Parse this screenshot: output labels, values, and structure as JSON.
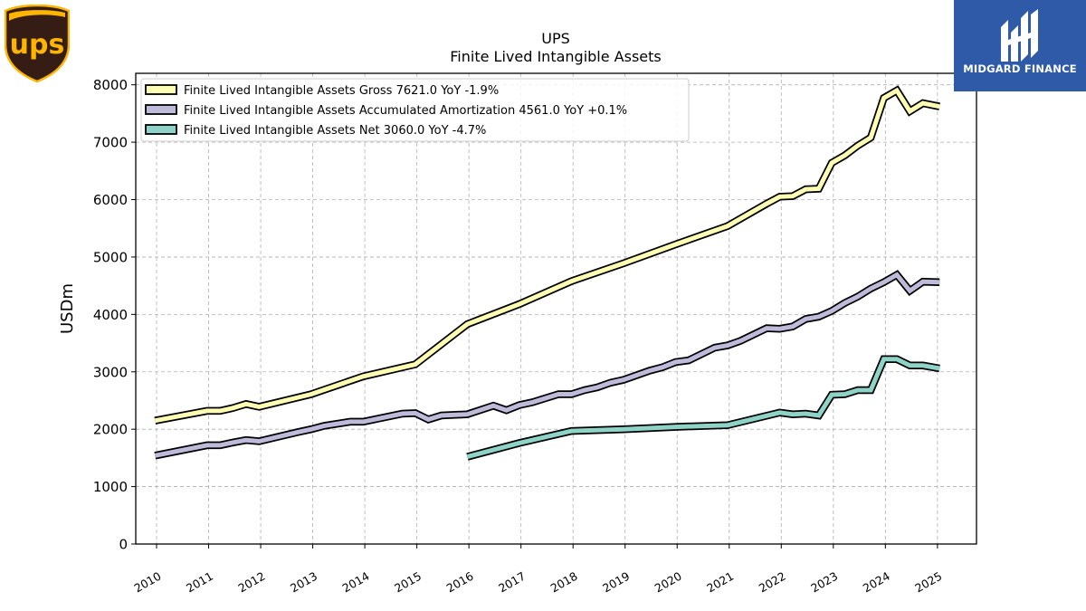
{
  "brand": {
    "ups_logo_text": "ups",
    "ups_colors": {
      "shield": "#351c15",
      "gold": "#ffb500"
    },
    "partner_name": "MIDGARD FINANCE",
    "partner_color": "#2f5aa8"
  },
  "chart_data": {
    "type": "line",
    "title": "UPS",
    "subtitle": "Finite Lived Intangible Assets",
    "ylabel": "USDm",
    "xlabel": "",
    "xlim": [
      2009.6,
      2025.75
    ],
    "ylim": [
      0,
      8200
    ],
    "yticks": [
      0,
      1000,
      2000,
      3000,
      4000,
      5000,
      6000,
      7000,
      8000
    ],
    "xticks": [
      "2010",
      "2011",
      "2012",
      "2013",
      "2014",
      "2015",
      "2016",
      "2017",
      "2018",
      "2019",
      "2020",
      "2021",
      "2022",
      "2023",
      "2024",
      "2025"
    ],
    "grid": true,
    "legend_position": "top-left",
    "series": [
      {
        "name": "Finite Lived Intangible Assets Gross  7621.0 YoY -1.9%",
        "color": "#ffffb3",
        "points": [
          [
            2009.97,
            2150
          ],
          [
            2010.97,
            2320
          ],
          [
            2011.22,
            2320
          ],
          [
            2011.47,
            2370
          ],
          [
            2011.72,
            2440
          ],
          [
            2011.97,
            2390
          ],
          [
            2012.97,
            2610
          ],
          [
            2013.97,
            2920
          ],
          [
            2014.97,
            3130
          ],
          [
            2015.97,
            3830
          ],
          [
            2016.97,
            4180
          ],
          [
            2017.97,
            4580
          ],
          [
            2018.97,
            4890
          ],
          [
            2019.97,
            5220
          ],
          [
            2020.97,
            5540
          ],
          [
            2021.72,
            5930
          ],
          [
            2021.97,
            6050
          ],
          [
            2022.22,
            6060
          ],
          [
            2022.47,
            6180
          ],
          [
            2022.72,
            6190
          ],
          [
            2022.97,
            6640
          ],
          [
            2023.22,
            6770
          ],
          [
            2023.47,
            6940
          ],
          [
            2023.72,
            7080
          ],
          [
            2023.97,
            7770
          ],
          [
            2024.22,
            7900
          ],
          [
            2024.47,
            7540
          ],
          [
            2024.72,
            7680
          ],
          [
            2025.04,
            7621
          ]
        ]
      },
      {
        "name": "Finite Lived Intangible Assets Accumulated Amortization  4561.0 YoY +0.1%",
        "color": "#bebada",
        "points": [
          [
            2009.97,
            1540
          ],
          [
            2010.97,
            1720
          ],
          [
            2011.22,
            1720
          ],
          [
            2011.47,
            1770
          ],
          [
            2011.72,
            1810
          ],
          [
            2011.97,
            1790
          ],
          [
            2012.72,
            1950
          ],
          [
            2012.97,
            2000
          ],
          [
            2013.22,
            2060
          ],
          [
            2013.72,
            2130
          ],
          [
            2013.97,
            2130
          ],
          [
            2014.72,
            2270
          ],
          [
            2014.97,
            2280
          ],
          [
            2015.22,
            2170
          ],
          [
            2015.47,
            2240
          ],
          [
            2015.97,
            2260
          ],
          [
            2016.47,
            2410
          ],
          [
            2016.72,
            2330
          ],
          [
            2016.97,
            2420
          ],
          [
            2017.22,
            2470
          ],
          [
            2017.72,
            2610
          ],
          [
            2017.97,
            2610
          ],
          [
            2018.22,
            2680
          ],
          [
            2018.47,
            2730
          ],
          [
            2018.72,
            2810
          ],
          [
            2018.97,
            2860
          ],
          [
            2019.47,
            3020
          ],
          [
            2019.72,
            3080
          ],
          [
            2019.97,
            3170
          ],
          [
            2020.22,
            3200
          ],
          [
            2020.72,
            3420
          ],
          [
            2020.97,
            3460
          ],
          [
            2021.22,
            3540
          ],
          [
            2021.72,
            3760
          ],
          [
            2021.97,
            3750
          ],
          [
            2022.22,
            3790
          ],
          [
            2022.47,
            3920
          ],
          [
            2022.72,
            3960
          ],
          [
            2022.97,
            4060
          ],
          [
            2023.22,
            4200
          ],
          [
            2023.47,
            4310
          ],
          [
            2023.72,
            4450
          ],
          [
            2023.97,
            4560
          ],
          [
            2024.22,
            4690
          ],
          [
            2024.47,
            4410
          ],
          [
            2024.72,
            4570
          ],
          [
            2025.04,
            4561
          ]
        ]
      },
      {
        "name": "Finite Lived Intangible Assets Net  3060.0 YoY -4.7%",
        "color": "#8dd3c7",
        "points": [
          [
            2015.97,
            1520
          ],
          [
            2016.97,
            1760
          ],
          [
            2017.97,
            1970
          ],
          [
            2018.97,
            2000
          ],
          [
            2019.97,
            2040
          ],
          [
            2020.97,
            2070
          ],
          [
            2021.97,
            2290
          ],
          [
            2022.22,
            2260
          ],
          [
            2022.47,
            2270
          ],
          [
            2022.72,
            2240
          ],
          [
            2022.97,
            2600
          ],
          [
            2023.22,
            2610
          ],
          [
            2023.47,
            2680
          ],
          [
            2023.72,
            2680
          ],
          [
            2023.97,
            3220
          ],
          [
            2024.22,
            3220
          ],
          [
            2024.47,
            3110
          ],
          [
            2024.72,
            3110
          ],
          [
            2025.04,
            3060
          ]
        ]
      }
    ]
  }
}
